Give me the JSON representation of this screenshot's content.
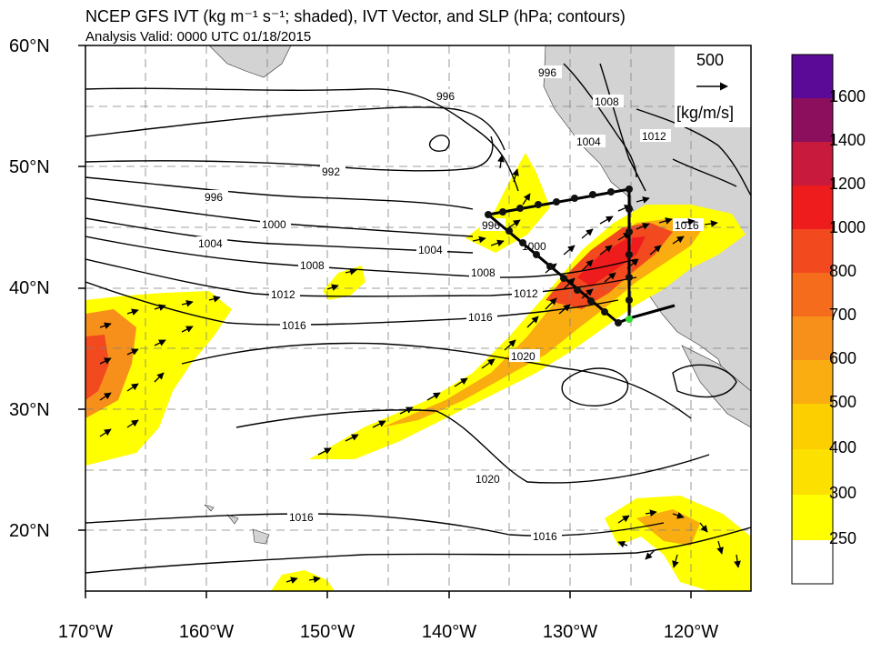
{
  "title": "NCEP GFS IVT (kg m⁻¹ s⁻¹; shaded), IVT Vector, and SLP (hPa; contours)",
  "subtitle": "Analysis Valid: 0000 UTC 01/18/2015",
  "lat_labels": [
    "60°N",
    "50°N",
    "40°N",
    "30°N",
    "20°N"
  ],
  "lon_labels": [
    "170°W",
    "160°W",
    "150°W",
    "140°W",
    "130°W",
    "120°W"
  ],
  "reference_vector": {
    "value": "500",
    "unit": "[kg/m/s]"
  },
  "colorbar": {
    "labels": [
      "1600",
      "1400",
      "1200",
      "1000",
      "800",
      "700",
      "600",
      "500",
      "400",
      "300",
      "250"
    ],
    "colors": [
      "#5a0a96",
      "#8c0f5e",
      "#c81a3c",
      "#ee1c1c",
      "#f24a1e",
      "#f46c1c",
      "#f7901a",
      "#f9ad10",
      "#fcd000",
      "#ffff00",
      "#ffffff"
    ]
  },
  "contour_labels": [
    "996",
    "996",
    "992",
    "996",
    "1000",
    "1004",
    "1004",
    "1008",
    "1008",
    "1012",
    "1012",
    "1016",
    "1016",
    "1020",
    "1020",
    "1016",
    "1016",
    "1004",
    "1008",
    "1012",
    "1016",
    "1000",
    "996"
  ],
  "colors": {
    "land": "#d3d3d3",
    "contour": "#000000",
    "grid": "#808080",
    "transect_point": "#111111",
    "anchor_point": "#33dd33"
  }
}
